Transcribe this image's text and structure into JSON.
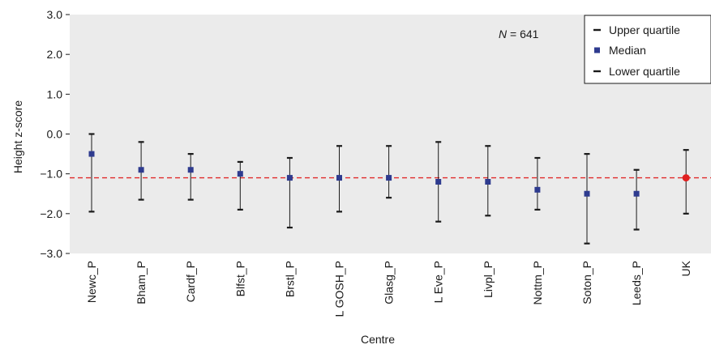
{
  "chart_data": {
    "type": "scatter",
    "subtype": "median-with-quartile-range",
    "xlabel": "Centre",
    "ylabel": "Height z-score",
    "ylim": [
      -3.0,
      3.0
    ],
    "yticks": [
      "3.0",
      "2.0",
      "1.0",
      "0.0",
      "−1.0",
      "−2.0",
      "−3.0"
    ],
    "ytick_values": [
      3,
      2,
      1,
      0,
      -1,
      -2,
      -3
    ],
    "annotation": {
      "prefix": "N",
      "text": " = 641"
    },
    "reference_line": {
      "y": -1.1,
      "color": "#e02a2a",
      "style": "dashed"
    },
    "grid": false,
    "background": "#ebebeb",
    "legend": {
      "placement": "top-right",
      "entries": [
        {
          "label": "Upper quartile",
          "marker": "dash"
        },
        {
          "label": "Median",
          "marker": "square"
        },
        {
          "label": "Lower quartile",
          "marker": "dash"
        }
      ]
    },
    "colors": {
      "median": "#2e3b8f",
      "uk_median": "#e02020",
      "whisker": "#1a1a1a"
    },
    "categories": [
      "Newc_P",
      "Bham_P",
      "Cardf_P",
      "Blfst_P",
      "Brstl_P",
      "L GOSH_P",
      "Glasg_P",
      "L Eve_P",
      "Livpl_P",
      "Nottm_P",
      "Soton_P",
      "Leeds_P",
      "UK"
    ],
    "upper_quartile": [
      0.0,
      -0.2,
      -0.5,
      -0.7,
      -0.6,
      -0.3,
      -0.3,
      -0.2,
      -0.3,
      -0.6,
      -0.5,
      -0.9,
      -0.4
    ],
    "median": [
      -0.5,
      -0.9,
      -0.9,
      -1.0,
      -1.1,
      -1.1,
      -1.1,
      -1.2,
      -1.2,
      -1.4,
      -1.5,
      -1.5,
      -1.1
    ],
    "lower_quartile": [
      -1.95,
      -1.65,
      -1.65,
      -1.9,
      -2.35,
      -1.95,
      -1.6,
      -2.2,
      -2.05,
      -1.9,
      -2.75,
      -2.4,
      -2.0
    ]
  }
}
